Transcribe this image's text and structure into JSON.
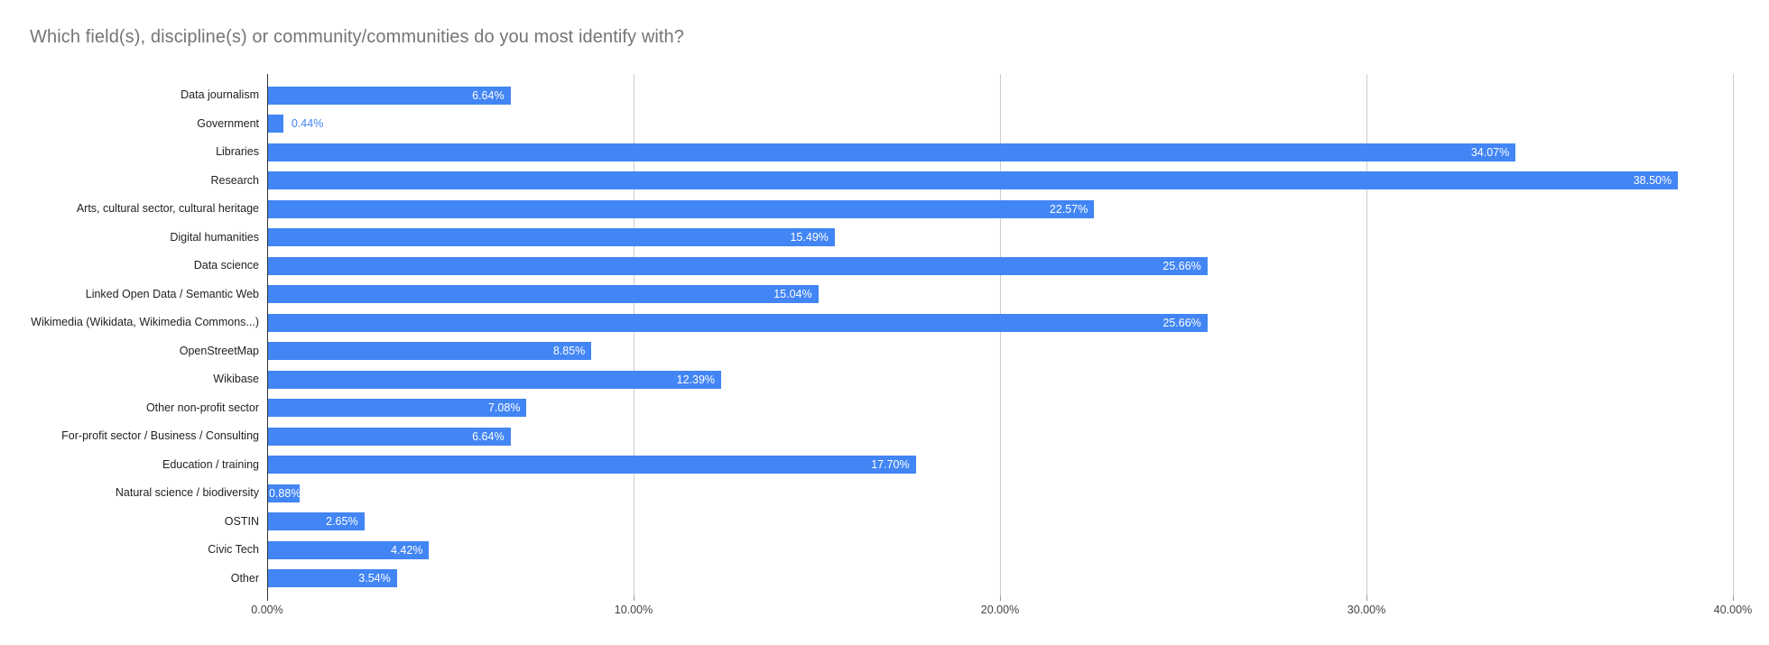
{
  "title": "Which field(s), discipline(s) or community/communities do you most identify with?",
  "colors": {
    "bar": "#4285F4",
    "outside_value_label": "#4285F4",
    "title": "#757575",
    "category_label": "#222222",
    "axis_label": "#444444",
    "gridline": "#cccccc",
    "baseline": "#333333"
  },
  "chart_data": {
    "type": "bar",
    "orientation": "horizontal",
    "title": "Which field(s), discipline(s) or community/communities do you most identify with?",
    "categories": [
      "Data journalism",
      "Government",
      "Libraries",
      "Research",
      "Arts, cultural sector, cultural heritage",
      "Digital humanities",
      "Data science",
      "Linked Open Data / Semantic Web",
      "Wikimedia (Wikidata, Wikimedia Commons...)",
      "OpenStreetMap",
      "Wikibase",
      "Other non-profit sector",
      "For-profit sector / Business / Consulting",
      "Education / training",
      "Natural science / biodiversity",
      "OSTIN",
      "Civic Tech",
      "Other"
    ],
    "values": [
      6.64,
      0.44,
      34.07,
      38.5,
      22.57,
      15.49,
      25.66,
      15.04,
      25.66,
      8.85,
      12.39,
      7.08,
      6.64,
      17.7,
      0.88,
      2.65,
      4.42,
      3.54
    ],
    "value_labels": [
      "6.64%",
      "0.44%",
      "34.07%",
      "38.50%",
      "22.57%",
      "15.49%",
      "25.66%",
      "15.04%",
      "25.66%",
      "8.85%",
      "12.39%",
      "7.08%",
      "6.64%",
      "17.70%",
      "0.88%",
      "2.65%",
      "4.42%",
      "3.54%"
    ],
    "xlabel": "",
    "ylabel": "",
    "x_axis": {
      "tick_labels": [
        "0.00%",
        "10.00%",
        "20.00%",
        "30.00%",
        "40.00%"
      ],
      "tick_values": [
        0,
        10,
        20,
        30,
        40
      ],
      "range": [
        0,
        40
      ]
    },
    "grid": true,
    "legend_position": "none"
  }
}
